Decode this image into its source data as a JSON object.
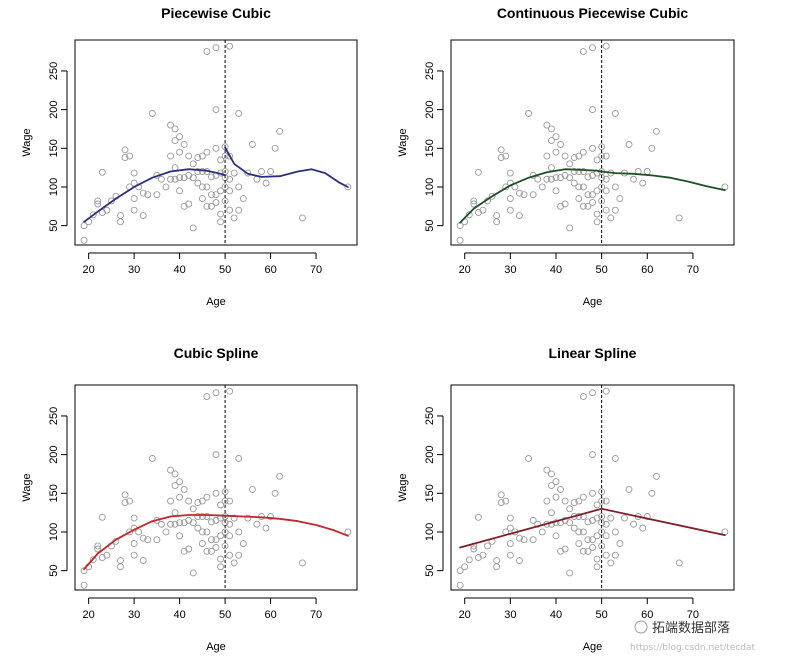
{
  "chart_data": [
    {
      "type": "scatter",
      "title": "Piecewise Cubic",
      "xlabel": "Age",
      "ylabel": "Wage",
      "xticks": [
        20,
        30,
        40,
        50,
        60,
        70
      ],
      "yticks": [
        50,
        100,
        150,
        200,
        250
      ],
      "xlim": [
        17,
        79
      ],
      "ylim": [
        25,
        290
      ],
      "knot": 50,
      "fit_color": "#2b2f7f",
      "fit_segments": [
        [
          [
            19,
            55
          ],
          [
            22,
            68
          ],
          [
            26,
            85
          ],
          [
            30,
            100
          ],
          [
            34,
            112
          ],
          [
            38,
            120
          ],
          [
            42,
            123
          ],
          [
            46,
            121
          ],
          [
            49,
            117
          ],
          [
            50,
            115
          ]
        ],
        [
          [
            50,
            151
          ],
          [
            52,
            130
          ],
          [
            55,
            117
          ],
          [
            58,
            113
          ],
          [
            62,
            114
          ],
          [
            66,
            120
          ],
          [
            69,
            123
          ],
          [
            72,
            118
          ],
          [
            75,
            106
          ],
          [
            77,
            100
          ]
        ]
      ]
    },
    {
      "type": "scatter",
      "title": "Continuous Piecewise Cubic",
      "xlabel": "Age",
      "ylabel": "Wage",
      "xticks": [
        20,
        30,
        40,
        50,
        60,
        70
      ],
      "yticks": [
        50,
        100,
        150,
        200,
        250
      ],
      "xlim": [
        17,
        79
      ],
      "ylim": [
        25,
        290
      ],
      "knot": 50,
      "fit_color": "#1f4f24",
      "fit_segments": [
        [
          [
            19,
            54
          ],
          [
            22,
            72
          ],
          [
            26,
            88
          ],
          [
            30,
            102
          ],
          [
            34,
            112
          ],
          [
            38,
            119
          ],
          [
            42,
            123
          ],
          [
            46,
            122
          ],
          [
            49,
            121
          ],
          [
            50,
            120
          ],
          [
            53,
            118
          ],
          [
            57,
            117
          ],
          [
            61,
            115
          ],
          [
            65,
            112
          ],
          [
            69,
            107
          ],
          [
            73,
            101
          ],
          [
            77,
            96
          ]
        ]
      ]
    },
    {
      "type": "scatter",
      "title": "Cubic Spline",
      "xlabel": "Age",
      "ylabel": "Wage",
      "xticks": [
        20,
        30,
        40,
        50,
        60,
        70
      ],
      "yticks": [
        50,
        100,
        150,
        200,
        250
      ],
      "xlim": [
        17,
        79
      ],
      "ylim": [
        25,
        290
      ],
      "knot": 50,
      "fit_color": "#c1272d",
      "fit_segments": [
        [
          [
            19,
            52
          ],
          [
            22,
            72
          ],
          [
            26,
            90
          ],
          [
            30,
            103
          ],
          [
            34,
            114
          ],
          [
            38,
            120
          ],
          [
            42,
            122
          ],
          [
            46,
            122
          ],
          [
            50,
            121
          ],
          [
            54,
            120
          ],
          [
            58,
            119
          ],
          [
            62,
            117
          ],
          [
            66,
            114
          ],
          [
            70,
            109
          ],
          [
            74,
            102
          ],
          [
            77,
            95
          ]
        ]
      ]
    },
    {
      "type": "scatter",
      "title": "Linear Spline",
      "xlabel": "Age",
      "ylabel": "Wage",
      "xticks": [
        20,
        30,
        40,
        50,
        60,
        70
      ],
      "yticks": [
        50,
        100,
        150,
        200,
        250
      ],
      "xlim": [
        17,
        79
      ],
      "ylim": [
        25,
        290
      ],
      "knot": 50,
      "fit_color": "#7f1d2a",
      "fit_segments": [
        [
          [
            19,
            80
          ],
          [
            50,
            130
          ],
          [
            77,
            96
          ]
        ]
      ]
    }
  ],
  "points": [
    [
      19,
      31
    ],
    [
      19,
      50
    ],
    [
      20,
      55
    ],
    [
      21,
      64
    ],
    [
      22,
      78
    ],
    [
      22,
      82
    ],
    [
      23,
      119
    ],
    [
      23,
      67
    ],
    [
      24,
      70
    ],
    [
      25,
      82
    ],
    [
      26,
      88
    ],
    [
      27,
      55
    ],
    [
      27,
      63
    ],
    [
      28,
      148
    ],
    [
      28,
      138
    ],
    [
      29,
      140
    ],
    [
      29,
      100
    ],
    [
      30,
      118
    ],
    [
      30,
      105
    ],
    [
      30,
      70
    ],
    [
      30,
      85
    ],
    [
      31,
      100
    ],
    [
      32,
      92
    ],
    [
      32,
      63
    ],
    [
      33,
      90
    ],
    [
      34,
      195
    ],
    [
      35,
      115
    ],
    [
      35,
      90
    ],
    [
      36,
      110
    ],
    [
      37,
      100
    ],
    [
      38,
      180
    ],
    [
      38,
      140
    ],
    [
      38,
      110
    ],
    [
      39,
      175
    ],
    [
      39,
      160
    ],
    [
      39,
      125
    ],
    [
      39,
      110
    ],
    [
      40,
      165
    ],
    [
      40,
      145
    ],
    [
      40,
      112
    ],
    [
      40,
      95
    ],
    [
      41,
      155
    ],
    [
      41,
      112
    ],
    [
      41,
      75
    ],
    [
      42,
      140
    ],
    [
      42,
      115
    ],
    [
      42,
      78
    ],
    [
      43,
      130
    ],
    [
      43,
      112
    ],
    [
      43,
      47
    ],
    [
      44,
      138
    ],
    [
      44,
      120
    ],
    [
      44,
      105
    ],
    [
      45,
      140
    ],
    [
      45,
      120
    ],
    [
      45,
      100
    ],
    [
      45,
      85
    ],
    [
      46,
      275
    ],
    [
      46,
      145
    ],
    [
      46,
      120
    ],
    [
      46,
      100
    ],
    [
      46,
      75
    ],
    [
      47,
      90
    ],
    [
      47,
      75
    ],
    [
      47,
      113
    ],
    [
      48,
      280
    ],
    [
      48,
      200
    ],
    [
      48,
      150
    ],
    [
      48,
      115
    ],
    [
      48,
      90
    ],
    [
      48,
      80
    ],
    [
      49,
      135
    ],
    [
      49,
      118
    ],
    [
      49,
      95
    ],
    [
      49,
      65
    ],
    [
      49,
      55
    ],
    [
      50,
      152
    ],
    [
      50,
      140
    ],
    [
      50,
      120
    ],
    [
      50,
      112
    ],
    [
      50,
      100
    ],
    [
      50,
      82
    ],
    [
      51,
      282
    ],
    [
      51,
      140
    ],
    [
      51,
      110
    ],
    [
      51,
      95
    ],
    [
      51,
      70
    ],
    [
      52,
      118
    ],
    [
      52,
      60
    ],
    [
      53,
      195
    ],
    [
      53,
      100
    ],
    [
      53,
      70
    ],
    [
      54,
      85
    ],
    [
      55,
      118
    ],
    [
      56,
      155
    ],
    [
      57,
      110
    ],
    [
      58,
      120
    ],
    [
      59,
      105
    ],
    [
      60,
      120
    ],
    [
      61,
      150
    ],
    [
      62,
      172
    ],
    [
      67,
      60
    ],
    [
      77,
      100
    ]
  ],
  "watermark": {
    "main": "拓端数据部落",
    "url": "https://blog.csdn.net/tecdat"
  }
}
